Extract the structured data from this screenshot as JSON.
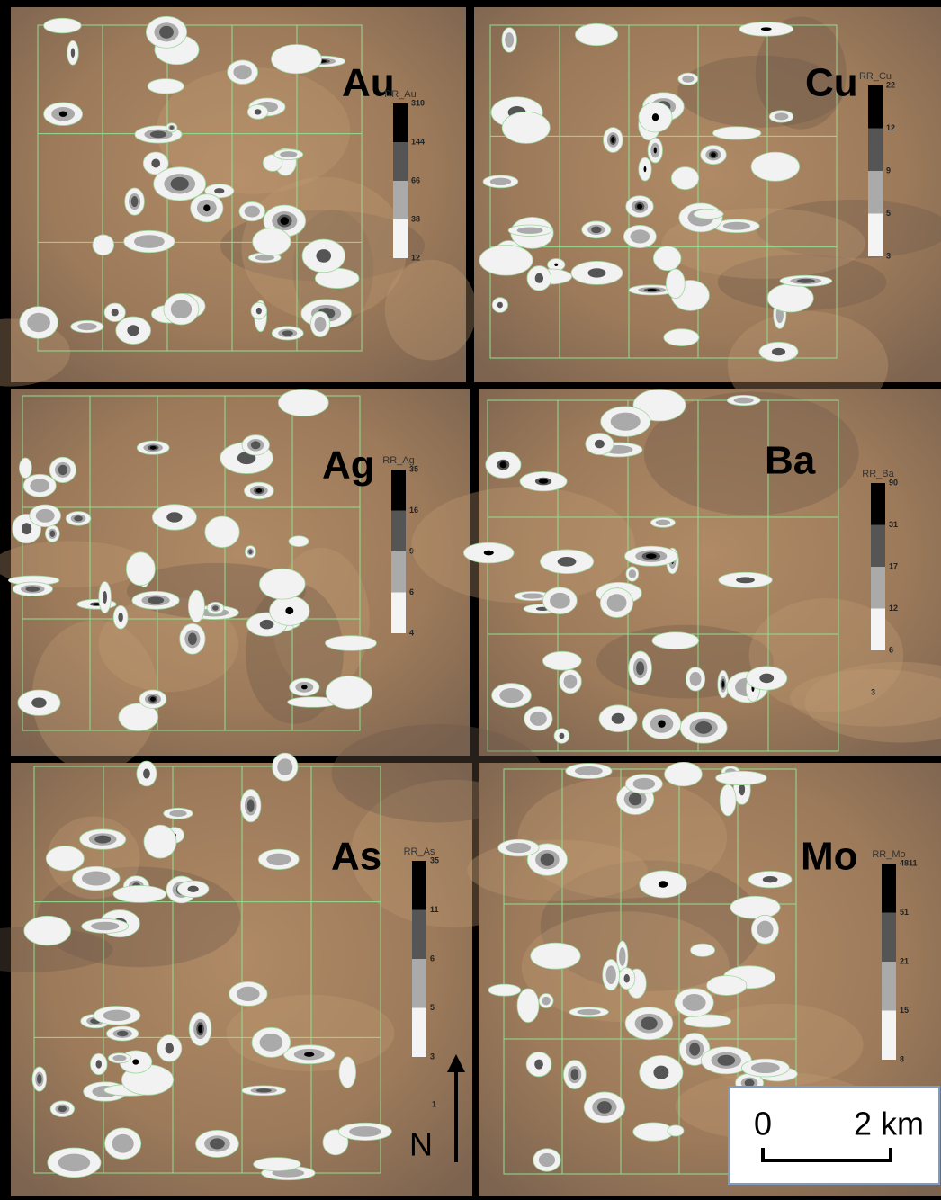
{
  "panels": [
    {
      "element": "Au",
      "legend_title": "RR_Au",
      "legend_ticks": [
        "310",
        "144",
        "66",
        "38",
        "12"
      ]
    },
    {
      "element": "Cu",
      "legend_title": "RR_Cu",
      "legend_ticks": [
        "22",
        "12",
        "9",
        "5",
        "3"
      ]
    },
    {
      "element": "Ag",
      "legend_title": "RR_Ag",
      "legend_ticks": [
        "35",
        "16",
        "9",
        "6",
        "4"
      ]
    },
    {
      "element": "Ba",
      "legend_title": "RR_Ba",
      "legend_ticks": [
        "90",
        "31",
        "17",
        "12",
        "6"
      ],
      "extra_label": "3"
    },
    {
      "element": "As",
      "legend_title": "RR_As",
      "legend_ticks": [
        "35",
        "11",
        "6",
        "5",
        "3"
      ],
      "extra_label": "1"
    },
    {
      "element": "Mo",
      "legend_title": "RR_Mo",
      "legend_ticks": [
        "4811",
        "51",
        "21",
        "15",
        "8"
      ]
    }
  ],
  "north_arrow": "N",
  "scale_bar": {
    "start": "0",
    "end": "2 km"
  }
}
